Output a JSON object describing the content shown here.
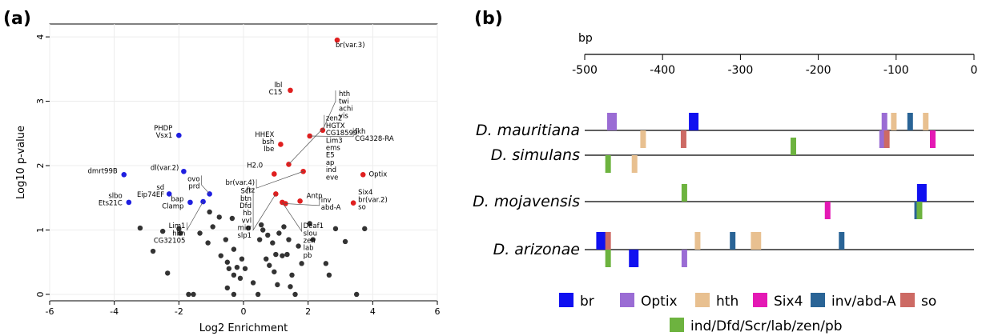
{
  "figure": {
    "panel_a_label": "(a)",
    "panel_b_label": "(b)"
  },
  "chart_data": [
    {
      "type": "scatter",
      "panel": "(a)",
      "xlabel": "Log2 Enrichment",
      "ylabel": "Log10 p-value",
      "xlim": [
        -6,
        6
      ],
      "ylim": [
        -0.1,
        4.2
      ],
      "xticks": [
        -6,
        -4,
        -2,
        0,
        2,
        4,
        6
      ],
      "yticks": [
        0,
        1,
        2,
        3,
        4
      ],
      "grid": true,
      "colors": {
        "depleted": "#1f1fe0",
        "enriched": "#e01f1f",
        "other": "#333333"
      },
      "labeled_points": [
        {
          "group": "enriched",
          "x": 2.9,
          "y": 3.95,
          "lines": [
            "br(var.3)"
          ],
          "tx": 2.85,
          "ty": 3.84,
          "anchor": "start"
        },
        {
          "group": "enriched",
          "x": 1.45,
          "y": 3.17,
          "lines": [
            "lbl",
            "C15"
          ],
          "tx": 1.2,
          "ty": 3.22,
          "anchor": "end"
        },
        {
          "group": "enriched",
          "x": 2.45,
          "y": 2.55,
          "lines": [
            "hth",
            "twi",
            "achi",
            "vis"
          ],
          "tx": 2.95,
          "ty": 3.08,
          "anchor": "start",
          "elbow": [
            2.85,
            3.0
          ]
        },
        {
          "group": "enriched",
          "x": 2.05,
          "y": 2.46,
          "lines": [
            "fkh",
            "CG4328-RA"
          ],
          "tx": 3.45,
          "ty": 2.5,
          "anchor": "start",
          "elbow": [
            3.4,
            2.45
          ]
        },
        {
          "group": "enriched",
          "x": 1.15,
          "y": 2.33,
          "lines": [
            "HHEX",
            "bsh",
            "lbe"
          ],
          "tx": 0.95,
          "ty": 2.45,
          "anchor": "end"
        },
        {
          "group": "enriched",
          "x": 1.4,
          "y": 2.02,
          "lines": [
            "zen2",
            "HGTX",
            "CG18599",
            "Lim3",
            "ems",
            "E5",
            "ap",
            "ind",
            "eve"
          ],
          "tx": 2.55,
          "ty": 2.7,
          "anchor": "start",
          "elbow": [
            2.5,
            2.6
          ]
        },
        {
          "group": "enriched",
          "x": 0.95,
          "y": 1.87,
          "lines": [
            "H2.0"
          ],
          "tx": 0.6,
          "ty": 1.97,
          "anchor": "end"
        },
        {
          "group": "enriched",
          "x": 1.85,
          "y": 1.91,
          "lines": [
            "br(var.4)",
            "ftz"
          ],
          "tx": 0.35,
          "ty": 1.7,
          "anchor": "end",
          "elbow": [
            0.4,
            1.65
          ]
        },
        {
          "group": "enriched",
          "x": 3.7,
          "y": 1.86,
          "lines": [
            "Optix"
          ],
          "tx": 3.88,
          "ty": 1.83,
          "anchor": "start"
        },
        {
          "group": "enriched",
          "x": 1.75,
          "y": 1.45,
          "lines": [
            "Antp"
          ],
          "tx": 1.95,
          "ty": 1.5,
          "anchor": "start"
        },
        {
          "group": "enriched",
          "x": 3.4,
          "y": 1.42,
          "lines": [
            "Six4",
            "br(var.2)",
            "so"
          ],
          "tx": 3.55,
          "ty": 1.55,
          "anchor": "start"
        },
        {
          "group": "enriched",
          "x": 1.3,
          "y": 1.41,
          "lines": [
            "inv",
            "abd-A"
          ],
          "tx": 2.4,
          "ty": 1.43,
          "anchor": "start",
          "elbow": [
            2.35,
            1.38
          ]
        },
        {
          "group": "enriched",
          "x": 1.0,
          "y": 1.56,
          "lines": [
            "Scr",
            "btn",
            "Dfd",
            "hb",
            "vvl",
            "mirr",
            "slp1"
          ],
          "tx": 0.25,
          "ty": 1.57,
          "anchor": "end",
          "elbow": [
            0.3,
            1.0
          ]
        },
        {
          "group": "enriched",
          "x": 1.2,
          "y": 1.43,
          "lines": [
            "Deaf1",
            "slou",
            "zen",
            "lab",
            "pb"
          ],
          "tx": 1.85,
          "ty": 1.03,
          "anchor": "start",
          "elbow": [
            1.8,
            0.98
          ]
        },
        {
          "group": "depleted",
          "x": -2.0,
          "y": 2.47,
          "lines": [
            "PHDP",
            "Vsx1"
          ],
          "tx": -2.2,
          "ty": 2.55,
          "anchor": "end"
        },
        {
          "group": "depleted",
          "x": -3.7,
          "y": 1.86,
          "lines": [
            "dmrt99B"
          ],
          "tx": -3.9,
          "ty": 1.88,
          "anchor": "end"
        },
        {
          "group": "depleted",
          "x": -1.85,
          "y": 1.91,
          "lines": [
            "dl(var.2)"
          ],
          "tx": -2.0,
          "ty": 1.93,
          "anchor": "end"
        },
        {
          "group": "depleted",
          "x": -1.05,
          "y": 1.56,
          "lines": [
            "ovo",
            "prd"
          ],
          "tx": -1.35,
          "ty": 1.76,
          "anchor": "end",
          "elbow": [
            -1.3,
            1.7
          ]
        },
        {
          "group": "depleted",
          "x": -2.3,
          "y": 1.56,
          "lines": [
            "sd",
            "Eip74EF"
          ],
          "tx": -2.45,
          "ty": 1.63,
          "anchor": "end"
        },
        {
          "group": "depleted",
          "x": -1.65,
          "y": 1.43,
          "lines": [
            "bap",
            "Clamp"
          ],
          "tx": -1.85,
          "ty": 1.45,
          "anchor": "end"
        },
        {
          "group": "depleted",
          "x": -3.55,
          "y": 1.43,
          "lines": [
            "slbo",
            "Ets21C"
          ],
          "tx": -3.75,
          "ty": 1.5,
          "anchor": "end"
        },
        {
          "group": "depleted",
          "x": -1.25,
          "y": 1.44,
          "lines": [
            "Lim1",
            "hbn",
            "CG32105"
          ],
          "tx": -1.8,
          "ty": 1.03,
          "anchor": "end",
          "elbow": [
            -1.75,
            1.0
          ]
        }
      ],
      "other_points": [
        [
          -3.2,
          1.03
        ],
        [
          -2.8,
          0.67
        ],
        [
          -2.35,
          0.33
        ],
        [
          -1.35,
          0.95
        ],
        [
          -1.1,
          0.8
        ],
        [
          -1.05,
          1.28
        ],
        [
          -0.95,
          1.05
        ],
        [
          -0.75,
          1.2
        ],
        [
          -0.7,
          0.6
        ],
        [
          -0.55,
          0.85
        ],
        [
          -0.5,
          0.5
        ],
        [
          -0.45,
          0.4
        ],
        [
          -0.35,
          1.18
        ],
        [
          -0.3,
          0.7
        ],
        [
          -0.3,
          0.3
        ],
        [
          -0.2,
          0.42
        ],
        [
          -0.1,
          0.25
        ],
        [
          -0.05,
          0.55
        ],
        [
          0.05,
          0.4
        ],
        [
          -1.7,
          0.0
        ],
        [
          -0.5,
          0.1
        ],
        [
          -0.3,
          0.0
        ],
        [
          0.3,
          0.18
        ],
        [
          0.45,
          0.0
        ],
        [
          0.5,
          0.85
        ],
        [
          0.6,
          1.0
        ],
        [
          0.7,
          0.55
        ],
        [
          0.75,
          0.92
        ],
        [
          0.8,
          0.45
        ],
        [
          0.9,
          0.8
        ],
        [
          0.95,
          0.35
        ],
        [
          1.0,
          0.62
        ],
        [
          1.05,
          0.15
        ],
        [
          1.1,
          0.95
        ],
        [
          1.2,
          0.6
        ],
        [
          1.25,
          1.05
        ],
        [
          1.35,
          0.62
        ],
        [
          1.4,
          0.85
        ],
        [
          1.45,
          0.12
        ],
        [
          1.5,
          0.3
        ],
        [
          1.6,
          0.0
        ],
        [
          1.7,
          0.75
        ],
        [
          1.8,
          0.48
        ],
        [
          2.05,
          1.1
        ],
        [
          2.15,
          0.85
        ],
        [
          2.55,
          0.48
        ],
        [
          2.65,
          0.3
        ],
        [
          2.85,
          1.02
        ],
        [
          3.15,
          0.82
        ],
        [
          3.5,
          0.0
        ],
        [
          3.75,
          1.02
        ],
        [
          -2.0,
          1.02
        ],
        [
          -1.95,
          0.95
        ],
        [
          -1.55,
          0.0
        ],
        [
          0.15,
          1.03
        ],
        [
          0.55,
          1.08
        ],
        [
          -2.5,
          0.98
        ]
      ]
    },
    {
      "type": "track",
      "panel": "(b)",
      "axis_unit": "bp",
      "xlim": [
        -500,
        0
      ],
      "xticks": [
        -500,
        -400,
        -300,
        -200,
        -100,
        0
      ],
      "colors": {
        "br": "#1010f0",
        "Optix": "#9a6cd4",
        "hth": "#e8c090",
        "Six4": "#e419b4",
        "inv/abd-A": "#2a6496",
        "so": "#cd6a64",
        "ind/Dfd/Scr/lab/zen/pb": "#6db33f"
      },
      "legend": [
        "br",
        "Optix",
        "hth",
        "Six4",
        "inv/abd-A",
        "so",
        "ind/Dfd/Scr/lab/zen/pb"
      ],
      "species": [
        {
          "name": "D. mauritiana",
          "sites": [
            {
              "tf": "Optix",
              "pos": -465,
              "strand": "+"
            },
            {
              "tf": "br",
              "pos": -360,
              "strand": "+"
            },
            {
              "tf": "Optix",
              "pos": -115,
              "strand": "+"
            },
            {
              "tf": "hth",
              "pos": -103,
              "strand": "+"
            },
            {
              "tf": "inv/abd-A",
              "pos": -82,
              "strand": "+"
            },
            {
              "tf": "hth",
              "pos": -62,
              "strand": "+"
            },
            {
              "tf": "hth",
              "pos": -425,
              "strand": "-"
            },
            {
              "tf": "so",
              "pos": -373,
              "strand": "-"
            },
            {
              "tf": "Optix",
              "pos": -118,
              "strand": "-"
            },
            {
              "tf": "so",
              "pos": -112,
              "strand": "-"
            },
            {
              "tf": "Six4",
              "pos": -53,
              "strand": "-"
            }
          ]
        },
        {
          "name": "D. simulans",
          "sites": [
            {
              "tf": "ind/Dfd/Scr/lab/zen/pb",
              "pos": -232,
              "strand": "+"
            },
            {
              "tf": "ind/Dfd/Scr/lab/zen/pb",
              "pos": -470,
              "strand": "-"
            },
            {
              "tf": "hth",
              "pos": -436,
              "strand": "-"
            }
          ]
        },
        {
          "name": "D. mojavensis",
          "sites": [
            {
              "tf": "ind/Dfd/Scr/lab/zen/pb",
              "pos": -372,
              "strand": "+"
            },
            {
              "tf": "br",
              "pos": -67,
              "strand": "+"
            },
            {
              "tf": "Six4",
              "pos": -188,
              "strand": "-"
            },
            {
              "tf": "inv/abd-A",
              "pos": -73,
              "strand": "-"
            },
            {
              "tf": "ind/Dfd/Scr/lab/zen/pb",
              "pos": -70,
              "strand": "-"
            }
          ]
        },
        {
          "name": "D. arizonae",
          "sites": [
            {
              "tf": "br",
              "pos": -479,
              "strand": "+"
            },
            {
              "tf": "so",
              "pos": -470,
              "strand": "+"
            },
            {
              "tf": "hth",
              "pos": -355,
              "strand": "+"
            },
            {
              "tf": "inv/abd-A",
              "pos": -310,
              "strand": "+"
            },
            {
              "tf": "hth",
              "pos": -283,
              "strand": "+"
            },
            {
              "tf": "hth",
              "pos": -277,
              "strand": "+"
            },
            {
              "tf": "inv/abd-A",
              "pos": -170,
              "strand": "+"
            },
            {
              "tf": "ind/Dfd/Scr/lab/zen/pb",
              "pos": -470,
              "strand": "-"
            },
            {
              "tf": "br",
              "pos": -437,
              "strand": "-"
            },
            {
              "tf": "Optix",
              "pos": -372,
              "strand": "-"
            }
          ]
        }
      ]
    }
  ]
}
